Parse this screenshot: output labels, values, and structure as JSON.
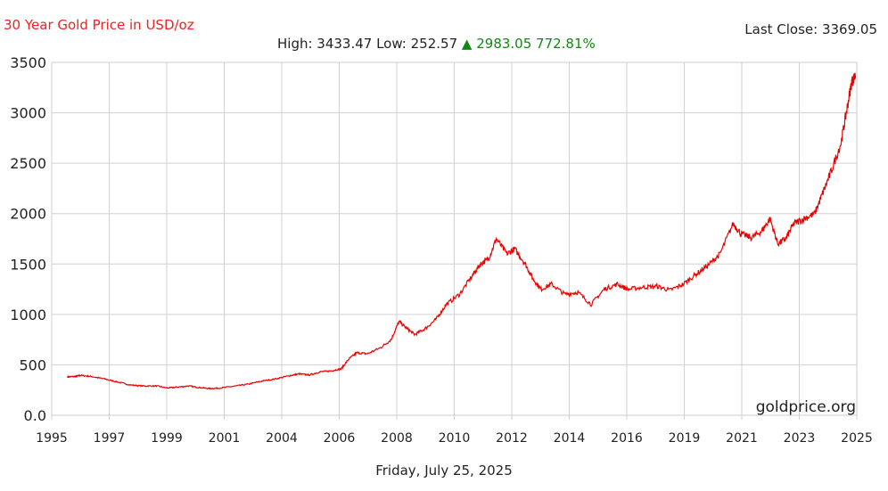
{
  "header": {
    "title": "30 Year Gold Price in USD/oz",
    "last_close": "Last Close: 3369.05",
    "high_low": "High: 3433.47 Low: 252.57",
    "change_arrow": "▲",
    "change": "2983.05 772.81%"
  },
  "footer": {
    "watermark": "goldprice.org",
    "date": "Friday, July 25, 2025"
  },
  "colors": {
    "line": "#ee0000",
    "grid": "#d0d0d0",
    "title": "#ee2222",
    "change_up": "#118811"
  },
  "chart_data": {
    "type": "line",
    "title": "30 Year Gold Price in USD/oz",
    "xlabel": "",
    "ylabel": "",
    "xlim": [
      1995.0,
      2025.6
    ],
    "ylim": [
      0,
      3500
    ],
    "x_tick_labels": [
      "1995",
      "1997",
      "1999",
      "2001",
      "2004",
      "2006",
      "2008",
      "2010",
      "2012",
      "2014",
      "2016",
      "2019",
      "2021",
      "2023",
      "2025"
    ],
    "y_ticks": [
      0,
      500,
      1000,
      1500,
      2000,
      2500,
      3000,
      3500
    ],
    "y_tick_labels": [
      "0.0",
      "500",
      "1000",
      "1500",
      "2000",
      "2500",
      "3000",
      "3500"
    ],
    "grid": true,
    "legend": "none",
    "series": [
      {
        "x": [
          1995.6,
          1995.9,
          1996.1,
          1996.5,
          1997.0,
          1997.5,
          1998.0,
          1998.5,
          1999.0,
          1999.4,
          1999.8,
          2000.2,
          2000.6,
          2001.0,
          2001.4,
          2002.0,
          2002.5,
          2003.0,
          2003.5,
          2004.0,
          2004.4,
          2004.8,
          2005.2,
          2005.6,
          2006.0,
          2006.3,
          2006.6,
          2007.0,
          2007.5,
          2007.9,
          2008.2,
          2008.5,
          2008.8,
          2009.2,
          2009.6,
          2010.0,
          2010.5,
          2011.0,
          2011.3,
          2011.6,
          2011.9,
          2012.3,
          2012.6,
          2013.0,
          2013.3,
          2013.6,
          2014.0,
          2014.5,
          2015.0,
          2015.5,
          2016.0,
          2016.5,
          2016.9,
          2017.5,
          2018.0,
          2018.5,
          2019.0,
          2019.5,
          2020.0,
          2020.4,
          2020.9,
          2021.2,
          2021.6,
          2022.0,
          2022.3,
          2022.6,
          2022.9,
          2023.2,
          2023.6,
          2024.0,
          2024.3,
          2024.6,
          2025.0,
          2025.2,
          2025.4,
          2025.55
        ],
        "y": [
          380,
          385,
          395,
          385,
          360,
          330,
          300,
          290,
          290,
          270,
          280,
          290,
          275,
          265,
          270,
          290,
          310,
          340,
          360,
          390,
          410,
          400,
          430,
          440,
          460,
          560,
          620,
          610,
          670,
          750,
          930,
          860,
          800,
          860,
          950,
          1100,
          1200,
          1390,
          1500,
          1550,
          1750,
          1600,
          1650,
          1500,
          1350,
          1250,
          1300,
          1200,
          1220,
          1100,
          1250,
          1300,
          1250,
          1270,
          1280,
          1240,
          1300,
          1400,
          1500,
          1600,
          1900,
          1800,
          1760,
          1830,
          1950,
          1700,
          1750,
          1900,
          1950,
          2000,
          2200,
          2400,
          2700,
          3000,
          3300,
          3370
        ]
      }
    ]
  }
}
